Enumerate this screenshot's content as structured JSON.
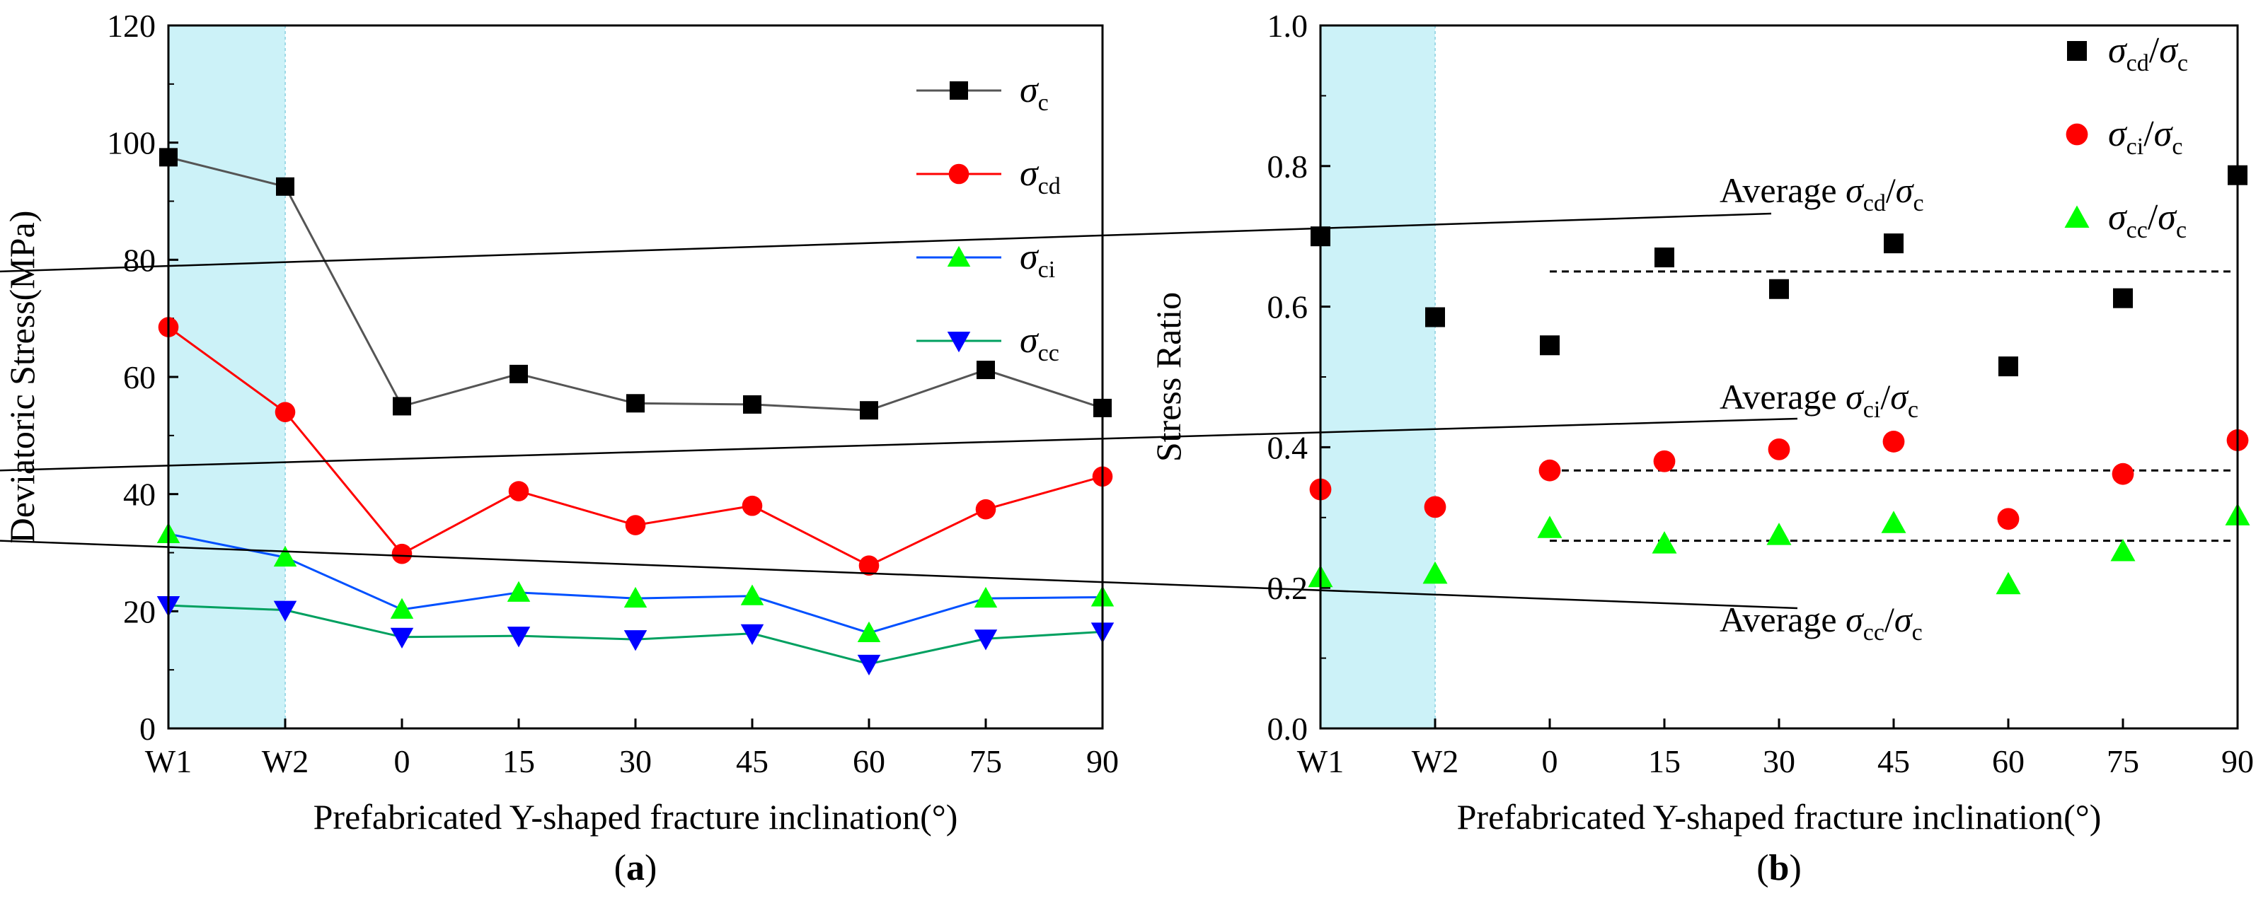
{
  "chart_data": [
    {
      "id": "a",
      "type": "line",
      "panel_label": "a",
      "xlabel": "Prefabricated Y-shaped fracture inclination(°)",
      "ylabel": "Deviatoric Stress(MPa)",
      "categories": [
        "W1",
        "W2",
        "0",
        "15",
        "30",
        "45",
        "60",
        "75",
        "90"
      ],
      "ylim": [
        0,
        120
      ],
      "yticks": [
        "0",
        "20",
        "40",
        "60",
        "80",
        "100",
        "120"
      ],
      "highlight_categories": [
        "W1",
        "W2"
      ],
      "highlight_color": "#ccf2f8",
      "legend_position": "top-right",
      "series": [
        {
          "name": "σ",
          "sub": "c",
          "marker": "square",
          "color": "#000000",
          "line_color": "#555555",
          "values": [
            97.5,
            92.5,
            55.0,
            60.5,
            55.5,
            55.3,
            54.3,
            61.2,
            54.7
          ]
        },
        {
          "name": "σ",
          "sub": "cd",
          "marker": "circle",
          "color": "#ff0000",
          "line_color": "#ff0000",
          "values": [
            68.5,
            54.0,
            29.8,
            40.5,
            34.7,
            38.0,
            27.8,
            37.4,
            43.0
          ]
        },
        {
          "name": "σ",
          "sub": "ci",
          "marker": "triangle-up",
          "color": "#00ff00",
          "line_color": "#0050ff",
          "values": [
            33.2,
            29.2,
            20.3,
            23.2,
            22.2,
            22.6,
            16.3,
            22.2,
            22.4
          ]
        },
        {
          "name": "σ",
          "sub": "cc",
          "marker": "triangle-down",
          "color": "#0000ff",
          "line_color": "#00a060",
          "values": [
            21.0,
            20.2,
            15.6,
            15.8,
            15.2,
            16.2,
            11.0,
            15.3,
            16.5
          ]
        }
      ]
    },
    {
      "id": "b",
      "type": "scatter",
      "panel_label": "b",
      "xlabel": "Prefabricated Y-shaped fracture inclination(°)",
      "ylabel": "Stress Ratio",
      "categories": [
        "W1",
        "W2",
        "0",
        "15",
        "30",
        "45",
        "60",
        "75",
        "90"
      ],
      "ylim": [
        0.0,
        1.0
      ],
      "yticks": [
        "0.0",
        "0.2",
        "0.4",
        "0.6",
        "0.8",
        "1.0"
      ],
      "highlight_categories": [
        "W1",
        "W2"
      ],
      "highlight_color": "#ccf2f8",
      "legend_position": "top-right",
      "series": [
        {
          "name": "σ",
          "sub": "cd",
          "den": "σ",
          "den_sub": "c",
          "marker": "square",
          "color": "#000000",
          "values": [
            0.7,
            0.585,
            0.545,
            0.67,
            0.625,
            0.69,
            0.515,
            0.612,
            0.787
          ]
        },
        {
          "name": "σ",
          "sub": "ci",
          "den": "σ",
          "den_sub": "c",
          "marker": "circle",
          "color": "#ff0000",
          "values": [
            0.34,
            0.315,
            0.367,
            0.38,
            0.397,
            0.408,
            0.298,
            0.362,
            0.41
          ]
        },
        {
          "name": "σ",
          "sub": "cc",
          "den": "σ",
          "den_sub": "c",
          "marker": "triangle-up",
          "color": "#00ff00",
          "values": [
            0.215,
            0.22,
            0.285,
            0.263,
            0.275,
            0.292,
            0.205,
            0.252,
            0.303
          ]
        }
      ],
      "averages": [
        {
          "label": "Average",
          "sub": "cd",
          "den_sub": "c",
          "value": 0.65
        },
        {
          "label": "Average",
          "sub": "ci",
          "den_sub": "c",
          "value": 0.367
        },
        {
          "label": "Average",
          "sub": "cc",
          "den_sub": "c",
          "value": 0.267
        }
      ]
    }
  ]
}
